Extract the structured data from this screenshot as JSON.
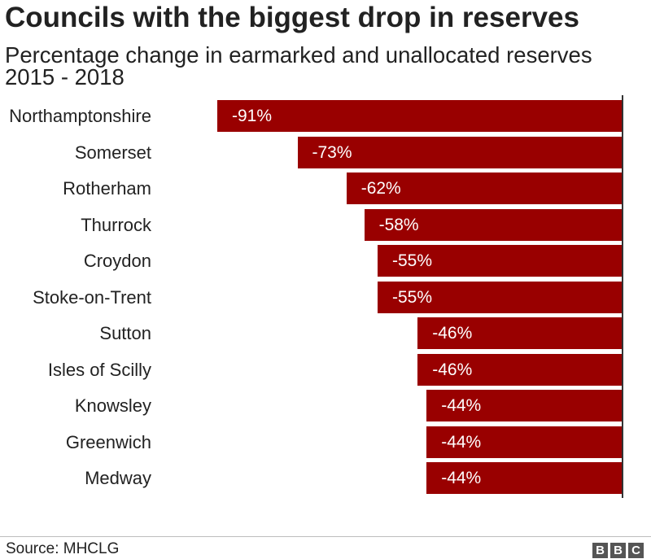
{
  "chart_data": {
    "type": "bar",
    "orientation": "horizontal",
    "title": "Councils with the biggest drop in reserves",
    "subtitle": [
      "Percentage change in earmarked and unallocated reserves",
      "2015 - 2018"
    ],
    "categories": [
      "Northamptonshire",
      "Somerset",
      "Rotherham",
      "Thurrock",
      "Croydon",
      "Stoke-on-Trent",
      "Sutton",
      "Isles of Scilly",
      "Knowsley",
      "Greenwich",
      "Medway"
    ],
    "values": [
      -91,
      -73,
      -62,
      -58,
      -55,
      -55,
      -46,
      -46,
      -44,
      -44,
      -44
    ],
    "value_labels": [
      "-91%",
      "-73%",
      "-62%",
      "-58%",
      "-55%",
      "-55%",
      "-46%",
      "-46%",
      "-44%",
      "-44%",
      "-44%"
    ],
    "xlabel": "",
    "ylabel": "",
    "xlim": [
      -91,
      0
    ],
    "grid": false,
    "zero_line": true
  },
  "source": "Source: MHCLG",
  "logo": {
    "letters": [
      "B",
      "B",
      "C"
    ]
  },
  "colors": {
    "bar": "#990000",
    "bar_label": "#ffffff",
    "zero_line": "#333333",
    "logo_box": "#555555"
  }
}
